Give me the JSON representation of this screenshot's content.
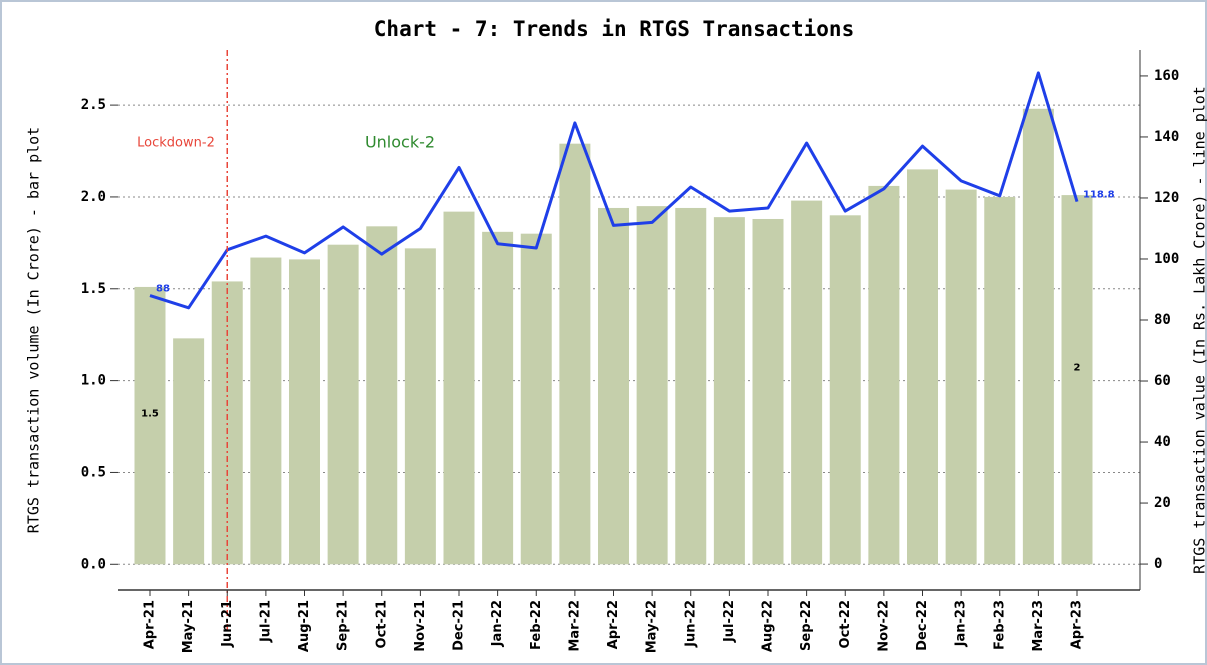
{
  "chart_data": {
    "type": "bar+line",
    "title": "Chart - 7: Trends in RTGS Transactions",
    "y_label": "RTGS transaction volume (In Crore) - bar plot",
    "y2_label": "RTGS transaction value (In Rs. Lakh Crore) - line plot",
    "categories": [
      "Apr-21",
      "May-21",
      "Jun-21",
      "Jul-21",
      "Aug-21",
      "Sep-21",
      "Oct-21",
      "Nov-21",
      "Dec-21",
      "Jan-22",
      "Feb-22",
      "Mar-22",
      "Apr-22",
      "May-22",
      "Jun-22",
      "Jul-22",
      "Aug-22",
      "Sep-22",
      "Oct-22",
      "Nov-22",
      "Dec-22",
      "Jan-23",
      "Feb-23",
      "Mar-23",
      "Apr-23"
    ],
    "series": [
      {
        "type": "bar",
        "color": "#c5cfab",
        "values": [
          1.51,
          1.23,
          1.54,
          1.67,
          1.66,
          1.74,
          1.84,
          1.72,
          1.92,
          1.81,
          1.8,
          2.29,
          1.94,
          1.95,
          1.94,
          1.89,
          1.88,
          1.98,
          1.9,
          2.06,
          2.15,
          2.04,
          2.0,
          2.48,
          2.01
        ],
        "value_labels": [
          "1.5",
          null,
          null,
          null,
          null,
          null,
          null,
          null,
          null,
          null,
          null,
          null,
          null,
          null,
          null,
          null,
          null,
          null,
          null,
          null,
          null,
          null,
          null,
          null,
          "2"
        ]
      },
      {
        "type": "line",
        "axis": "y2",
        "color": "#1f3fe8",
        "values": [
          88,
          84,
          103,
          107.5,
          102,
          110.5,
          101.6,
          110,
          130,
          105,
          103.6,
          144.6,
          111,
          112,
          123.6,
          115.7,
          116.7,
          138,
          115.7,
          123,
          137,
          125.6,
          120.7,
          161,
          118.8
        ],
        "value_labels": [
          "88",
          null,
          null,
          null,
          null,
          null,
          null,
          null,
          null,
          null,
          null,
          null,
          null,
          null,
          null,
          null,
          null,
          null,
          null,
          null,
          null,
          null,
          null,
          null,
          "118.8"
        ]
      }
    ],
    "ylim": [
      -0.14,
      2.8
    ],
    "yticks": [
      {
        "value": 0,
        "label": "0.0"
      },
      {
        "value": 0.5,
        "label": "0.5"
      },
      {
        "value": 1,
        "label": "1.0"
      },
      {
        "value": 1.5,
        "label": "1.5"
      },
      {
        "value": 2,
        "label": "2.0"
      },
      {
        "value": 2.5,
        "label": "2.5"
      }
    ],
    "y2lim": [
      -8.5,
      168.5
    ],
    "y2ticks": [
      0,
      20,
      40,
      60,
      80,
      100,
      120,
      140,
      160
    ],
    "grid": true,
    "vline": {
      "x": "Jun-21",
      "color": "#e8463a"
    },
    "annotations": [
      {
        "text": "Lockdown-2",
        "color": "#e8463a"
      },
      {
        "text": "Unlock-2",
        "color": "#2f8a2f"
      }
    ]
  }
}
